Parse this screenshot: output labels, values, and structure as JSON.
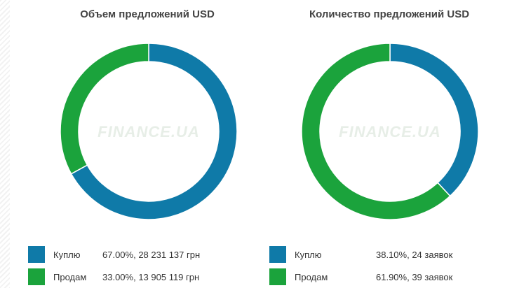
{
  "colors": {
    "buy": "#0f7aa8",
    "sell": "#1ba33c",
    "watermark": "#e7eee7"
  },
  "watermark_text": "FINANCE.UA",
  "chart_data": [
    {
      "type": "pie",
      "title": "Объем предложений USD",
      "slices": [
        {
          "label": "Куплю",
          "percent": 67.0,
          "value_text": "67.00%, 28 231 137 грн"
        },
        {
          "label": "Продам",
          "percent": 33.0,
          "value_text": "33.00%, 13 905 119 грн"
        }
      ]
    },
    {
      "type": "pie",
      "title": "Количество предложений USD",
      "slices": [
        {
          "label": "Куплю",
          "percent": 38.1,
          "value_text": "38.10%, 24 заявок"
        },
        {
          "label": "Продам",
          "percent": 61.9,
          "value_text": "61.90%, 39 заявок"
        }
      ]
    }
  ]
}
